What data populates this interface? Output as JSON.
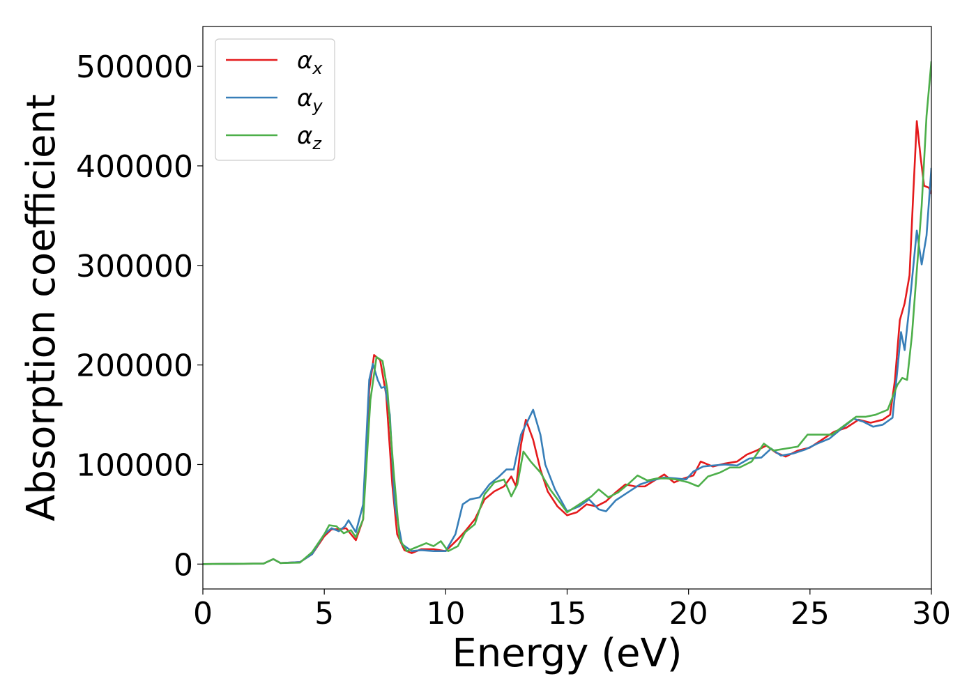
{
  "chart_data": {
    "type": "line",
    "title": "",
    "xlabel": "Energy (eV)",
    "ylabel": "Absorption coefficient",
    "xlim": [
      0,
      30
    ],
    "ylim": [
      -25000,
      540000
    ],
    "xticks": [
      0,
      5,
      10,
      15,
      20,
      25,
      30
    ],
    "yticks": [
      0,
      100000,
      200000,
      300000,
      400000,
      500000
    ],
    "xtick_labels": [
      "0",
      "5",
      "10",
      "15",
      "20",
      "25",
      "30"
    ],
    "ytick_labels": [
      "0",
      "100000",
      "200000",
      "300000",
      "400000",
      "500000"
    ],
    "grid": false,
    "legend_position": "top-left",
    "series": [
      {
        "name": "α",
        "subscript": "x",
        "color": "#e41a1c",
        "points": [
          [
            0,
            0
          ],
          [
            2.5,
            500
          ],
          [
            2.9,
            5000
          ],
          [
            3.2,
            1000
          ],
          [
            4,
            2000
          ],
          [
            4.5,
            10000
          ],
          [
            5,
            28000
          ],
          [
            5.3,
            35000
          ],
          [
            5.6,
            35000
          ],
          [
            5.9,
            36000
          ],
          [
            6.1,
            30000
          ],
          [
            6.3,
            24000
          ],
          [
            6.6,
            45000
          ],
          [
            6.85,
            175000
          ],
          [
            7.05,
            210000
          ],
          [
            7.3,
            205000
          ],
          [
            7.55,
            170000
          ],
          [
            7.8,
            80000
          ],
          [
            8,
            30000
          ],
          [
            8.3,
            14000
          ],
          [
            8.6,
            11000
          ],
          [
            9,
            15000
          ],
          [
            9.5,
            15000
          ],
          [
            10,
            13000
          ],
          [
            10.5,
            25000
          ],
          [
            10.8,
            33000
          ],
          [
            11.2,
            45000
          ],
          [
            11.6,
            65000
          ],
          [
            12,
            73000
          ],
          [
            12.4,
            78000
          ],
          [
            12.7,
            88000
          ],
          [
            12.9,
            78000
          ],
          [
            13.1,
            120000
          ],
          [
            13.3,
            145000
          ],
          [
            13.6,
            125000
          ],
          [
            13.9,
            95000
          ],
          [
            14.2,
            73000
          ],
          [
            14.6,
            58000
          ],
          [
            15,
            49000
          ],
          [
            15.4,
            52000
          ],
          [
            15.8,
            60000
          ],
          [
            16.2,
            58000
          ],
          [
            16.6,
            63000
          ],
          [
            17,
            72000
          ],
          [
            17.4,
            80000
          ],
          [
            17.8,
            78000
          ],
          [
            18.2,
            78000
          ],
          [
            18.6,
            84000
          ],
          [
            19,
            90000
          ],
          [
            19.4,
            82000
          ],
          [
            19.8,
            86000
          ],
          [
            20.2,
            89000
          ],
          [
            20.5,
            103000
          ],
          [
            21,
            98000
          ],
          [
            21.5,
            101000
          ],
          [
            22,
            103000
          ],
          [
            22.4,
            110000
          ],
          [
            22.8,
            114000
          ],
          [
            23.2,
            119000
          ],
          [
            23.6,
            112000
          ],
          [
            24,
            108000
          ],
          [
            24.5,
            114000
          ],
          [
            25,
            117000
          ],
          [
            25.5,
            125000
          ],
          [
            26,
            133000
          ],
          [
            26.5,
            137000
          ],
          [
            27,
            145000
          ],
          [
            27.5,
            142000
          ],
          [
            28,
            145000
          ],
          [
            28.3,
            150000
          ],
          [
            28.5,
            185000
          ],
          [
            28.7,
            245000
          ],
          [
            28.9,
            262000
          ],
          [
            29.1,
            290000
          ],
          [
            29.25,
            370000
          ],
          [
            29.4,
            445000
          ],
          [
            29.55,
            410000
          ],
          [
            29.7,
            380000
          ],
          [
            29.9,
            378000
          ],
          [
            30,
            372000
          ]
        ]
      },
      {
        "name": "α",
        "subscript": "y",
        "color": "#377eb8",
        "points": [
          [
            0,
            0
          ],
          [
            2.5,
            500
          ],
          [
            2.9,
            5000
          ],
          [
            3.2,
            1000
          ],
          [
            4,
            2000
          ],
          [
            4.5,
            10000
          ],
          [
            5,
            30000
          ],
          [
            5.3,
            36000
          ],
          [
            5.6,
            33000
          ],
          [
            5.85,
            38000
          ],
          [
            6,
            44000
          ],
          [
            6.3,
            32000
          ],
          [
            6.6,
            60000
          ],
          [
            6.85,
            185000
          ],
          [
            7,
            201000
          ],
          [
            7.2,
            185000
          ],
          [
            7.35,
            177000
          ],
          [
            7.5,
            178000
          ],
          [
            7.7,
            150000
          ],
          [
            7.9,
            60000
          ],
          [
            8.2,
            20000
          ],
          [
            8.6,
            13000
          ],
          [
            9,
            14000
          ],
          [
            9.5,
            13000
          ],
          [
            10,
            13000
          ],
          [
            10.4,
            30000
          ],
          [
            10.7,
            60000
          ],
          [
            11,
            65000
          ],
          [
            11.4,
            67000
          ],
          [
            11.8,
            80000
          ],
          [
            12.2,
            88000
          ],
          [
            12.5,
            95000
          ],
          [
            12.8,
            95000
          ],
          [
            13.1,
            130000
          ],
          [
            13.4,
            145000
          ],
          [
            13.6,
            155000
          ],
          [
            13.9,
            130000
          ],
          [
            14.1,
            100000
          ],
          [
            14.5,
            75000
          ],
          [
            15,
            53000
          ],
          [
            15.5,
            58000
          ],
          [
            15.9,
            65000
          ],
          [
            16.3,
            55000
          ],
          [
            16.6,
            53000
          ],
          [
            17,
            64000
          ],
          [
            17.5,
            72000
          ],
          [
            18,
            80000
          ],
          [
            18.5,
            84000
          ],
          [
            19,
            87000
          ],
          [
            19.5,
            86000
          ],
          [
            19.9,
            85000
          ],
          [
            20.2,
            93000
          ],
          [
            20.6,
            98000
          ],
          [
            21,
            99000
          ],
          [
            21.5,
            100000
          ],
          [
            22,
            99000
          ],
          [
            22.5,
            106000
          ],
          [
            23,
            107000
          ],
          [
            23.4,
            116000
          ],
          [
            23.8,
            109000
          ],
          [
            24.3,
            111000
          ],
          [
            24.8,
            115000
          ],
          [
            25.3,
            121000
          ],
          [
            25.8,
            126000
          ],
          [
            26.3,
            136000
          ],
          [
            26.8,
            146000
          ],
          [
            27.2,
            143000
          ],
          [
            27.6,
            138000
          ],
          [
            28,
            140000
          ],
          [
            28.4,
            147000
          ],
          [
            28.6,
            195000
          ],
          [
            28.75,
            233000
          ],
          [
            28.9,
            215000
          ],
          [
            29.1,
            260000
          ],
          [
            29.3,
            310000
          ],
          [
            29.4,
            335000
          ],
          [
            29.6,
            301000
          ],
          [
            29.8,
            330000
          ],
          [
            30,
            398000
          ]
        ]
      },
      {
        "name": "α",
        "subscript": "z",
        "color": "#4daf4a",
        "points": [
          [
            0,
            0
          ],
          [
            2.5,
            500
          ],
          [
            2.9,
            5000
          ],
          [
            3.2,
            1000
          ],
          [
            4,
            1500
          ],
          [
            4.5,
            12000
          ],
          [
            5,
            30000
          ],
          [
            5.2,
            39000
          ],
          [
            5.5,
            38000
          ],
          [
            5.8,
            31000
          ],
          [
            6.1,
            34000
          ],
          [
            6.3,
            27000
          ],
          [
            6.6,
            45000
          ],
          [
            6.9,
            165000
          ],
          [
            7.15,
            208000
          ],
          [
            7.4,
            204000
          ],
          [
            7.6,
            175000
          ],
          [
            7.85,
            95000
          ],
          [
            8.1,
            25000
          ],
          [
            8.4,
            13000
          ],
          [
            8.8,
            17000
          ],
          [
            9.2,
            21000
          ],
          [
            9.5,
            18000
          ],
          [
            9.8,
            23000
          ],
          [
            10.1,
            13000
          ],
          [
            10.5,
            18000
          ],
          [
            10.8,
            32000
          ],
          [
            11.2,
            40000
          ],
          [
            11.6,
            70000
          ],
          [
            12,
            82000
          ],
          [
            12.4,
            85000
          ],
          [
            12.7,
            68000
          ],
          [
            12.95,
            80000
          ],
          [
            13.2,
            113000
          ],
          [
            13.5,
            103000
          ],
          [
            13.9,
            92000
          ],
          [
            14.3,
            75000
          ],
          [
            14.7,
            62000
          ],
          [
            15,
            52000
          ],
          [
            15.5,
            60000
          ],
          [
            16,
            68000
          ],
          [
            16.3,
            75000
          ],
          [
            16.7,
            67000
          ],
          [
            17.1,
            72000
          ],
          [
            17.5,
            80000
          ],
          [
            17.9,
            89000
          ],
          [
            18.3,
            84000
          ],
          [
            18.7,
            86000
          ],
          [
            19.1,
            86000
          ],
          [
            19.5,
            85000
          ],
          [
            20,
            82000
          ],
          [
            20.4,
            78000
          ],
          [
            20.8,
            88000
          ],
          [
            21.3,
            92000
          ],
          [
            21.7,
            97000
          ],
          [
            22.1,
            97000
          ],
          [
            22.6,
            103000
          ],
          [
            23.1,
            121000
          ],
          [
            23.5,
            114000
          ],
          [
            24,
            116000
          ],
          [
            24.5,
            118000
          ],
          [
            24.9,
            130000
          ],
          [
            25.4,
            130000
          ],
          [
            25.9,
            130000
          ],
          [
            26.4,
            139000
          ],
          [
            26.9,
            148000
          ],
          [
            27.3,
            148000
          ],
          [
            27.7,
            150000
          ],
          [
            28.2,
            155000
          ],
          [
            28.6,
            180000
          ],
          [
            28.8,
            187000
          ],
          [
            29,
            185000
          ],
          [
            29.2,
            230000
          ],
          [
            29.4,
            295000
          ],
          [
            29.6,
            360000
          ],
          [
            29.8,
            450000
          ],
          [
            30,
            505000
          ]
        ]
      }
    ]
  }
}
